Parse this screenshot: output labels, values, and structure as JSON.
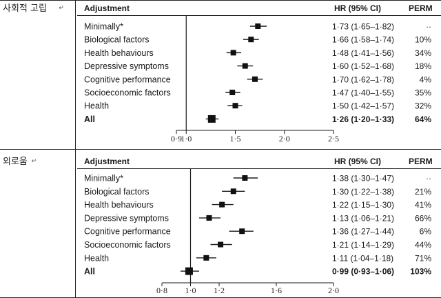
{
  "chart_data": [
    {
      "type": "forest",
      "side_label": "사회적 고립",
      "header": {
        "adjustment": "Adjustment",
        "hr": "HR (95% CI)",
        "perm": "PERM"
      },
      "xlim": [
        0.9,
        2.5
      ],
      "xticks": [
        0.9,
        1.0,
        1.5,
        2.0,
        2.5
      ],
      "xtick_labels": [
        "0·9",
        "1·0",
        "1·5",
        "2·0",
        "2·5"
      ],
      "reference": 1.0,
      "rows": [
        {
          "label": "Minimally*",
          "hr": 1.73,
          "lo": 1.65,
          "hi": 1.82,
          "hr_text": "1·73 (1·65–1·82)",
          "perm": "··",
          "bold": false
        },
        {
          "label": "Biological factors",
          "hr": 1.66,
          "lo": 1.58,
          "hi": 1.74,
          "hr_text": "1·66 (1·58–1·74)",
          "perm": "10%",
          "bold": false
        },
        {
          "label": "Health behaviours",
          "hr": 1.48,
          "lo": 1.41,
          "hi": 1.56,
          "hr_text": "1·48 (1·41–1·56)",
          "perm": "34%",
          "bold": false
        },
        {
          "label": "Depressive symptoms",
          "hr": 1.6,
          "lo": 1.52,
          "hi": 1.68,
          "hr_text": "1·60 (1·52–1·68)",
          "perm": "18%",
          "bold": false
        },
        {
          "label": "Cognitive performance",
          "hr": 1.7,
          "lo": 1.62,
          "hi": 1.78,
          "hr_text": "1·70 (1·62–1·78)",
          "perm": "4%",
          "bold": false
        },
        {
          "label": "Socioeconomic factors",
          "hr": 1.47,
          "lo": 1.4,
          "hi": 1.55,
          "hr_text": "1·47 (1·40–1·55)",
          "perm": "35%",
          "bold": false
        },
        {
          "label": "Health",
          "hr": 1.5,
          "lo": 1.42,
          "hi": 1.57,
          "hr_text": "1·50 (1·42–1·57)",
          "perm": "32%",
          "bold": false
        },
        {
          "label": "All",
          "hr": 1.26,
          "lo": 1.2,
          "hi": 1.33,
          "hr_text": "1·26 (1·20–1·33)",
          "perm": "64%",
          "bold": true
        }
      ]
    },
    {
      "type": "forest",
      "side_label": "외로움",
      "header": {
        "adjustment": "Adjustment",
        "hr": "HR (95% CI)",
        "perm": "PERM"
      },
      "xlim": [
        0.8,
        2.0
      ],
      "xticks": [
        0.8,
        1.0,
        1.2,
        1.6,
        2.0
      ],
      "xtick_labels": [
        "0·8",
        "1·0",
        "1·2",
        "1·6",
        "2·0"
      ],
      "reference": 1.0,
      "rows": [
        {
          "label": "Minimally*",
          "hr": 1.38,
          "lo": 1.3,
          "hi": 1.47,
          "hr_text": "1·38 (1·30–1·47)",
          "perm": "··",
          "bold": false
        },
        {
          "label": "Biological factors",
          "hr": 1.3,
          "lo": 1.22,
          "hi": 1.38,
          "hr_text": "1·30 (1·22–1·38)",
          "perm": "21%",
          "bold": false
        },
        {
          "label": "Health behaviours",
          "hr": 1.22,
          "lo": 1.15,
          "hi": 1.3,
          "hr_text": "1·22 (1·15–1·30)",
          "perm": "41%",
          "bold": false
        },
        {
          "label": "Depressive symptoms",
          "hr": 1.13,
          "lo": 1.06,
          "hi": 1.21,
          "hr_text": "1·13 (1·06–1·21)",
          "perm": "66%",
          "bold": false
        },
        {
          "label": "Cognitive performance",
          "hr": 1.36,
          "lo": 1.27,
          "hi": 1.44,
          "hr_text": "1·36 (1·27–1·44)",
          "perm": "6%",
          "bold": false
        },
        {
          "label": "Socioeconomic factors",
          "hr": 1.21,
          "lo": 1.14,
          "hi": 1.29,
          "hr_text": "1·21 (1·14–1·29)",
          "perm": "44%",
          "bold": false
        },
        {
          "label": "Health",
          "hr": 1.11,
          "lo": 1.04,
          "hi": 1.18,
          "hr_text": "1·11 (1·04–1·18)",
          "perm": "71%",
          "bold": false
        },
        {
          "label": "All",
          "hr": 0.99,
          "lo": 0.93,
          "hi": 1.06,
          "hr_text": "0·99 (0·93–1·06)",
          "perm": "103%",
          "bold": true
        }
      ]
    }
  ]
}
